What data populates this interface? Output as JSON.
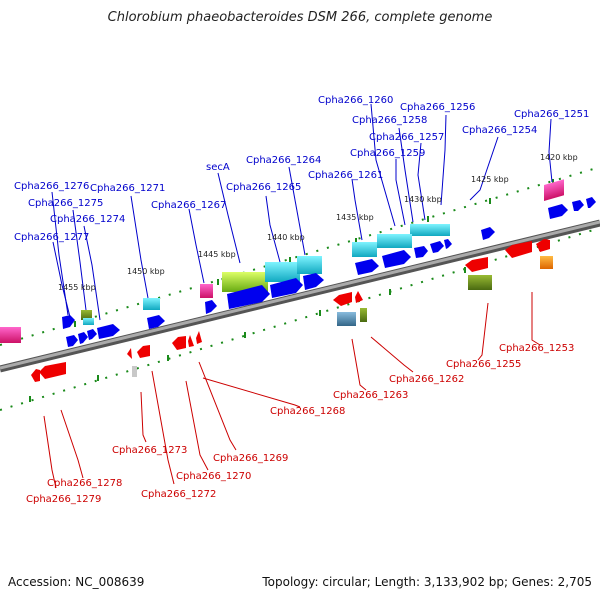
{
  "title": "Chlorobium phaeobacteroides DSM 266, complete genome",
  "footer": {
    "accession": "Accession: NC_008639",
    "topology": "Topology: circular; Length: 3,133,902 bp; Genes: 2,705"
  },
  "kbp_labels": [
    "1420 kbp",
    "1425 kbp",
    "1430 kbp",
    "1435 kbp",
    "1440 kbp",
    "1445 kbp",
    "1450 kbp",
    "1455 kbp"
  ],
  "forward_gene_labels": [
    "Cpha266_1251",
    "Cpha266_1254",
    "Cpha266_1256",
    "Cpha266_1257",
    "Cpha266_1258",
    "Cpha266_1259",
    "Cpha266_1260",
    "Cpha266_1261",
    "Cpha266_1264",
    "Cpha266_1265",
    "secA",
    "Cpha266_1267",
    "Cpha266_1271",
    "Cpha266_1274",
    "Cpha266_1275",
    "Cpha266_1276",
    "Cpha266_1277"
  ],
  "reverse_gene_labels": [
    "Cpha266_1253",
    "Cpha266_1255",
    "Cpha266_1262",
    "Cpha266_1263",
    "Cpha266_1268",
    "Cpha266_1269",
    "Cpha266_1270",
    "Cpha266_1272",
    "Cpha266_1273",
    "Cpha266_1278",
    "Cpha266_1279"
  ],
  "colors": {
    "forward_gene": "#0000ee",
    "reverse_gene": "#ee0000",
    "forward_label": "#0000cc",
    "reverse_label": "#cc0000",
    "backbone": "#8a8a8a",
    "tick": "#1a8a1a",
    "cyan_feature": "#20d0e0",
    "lime_feature": "#99dd22",
    "olive_feature": "#668822",
    "magenta_feature": "#ee2288",
    "orange_feature": "#ee8800"
  }
}
